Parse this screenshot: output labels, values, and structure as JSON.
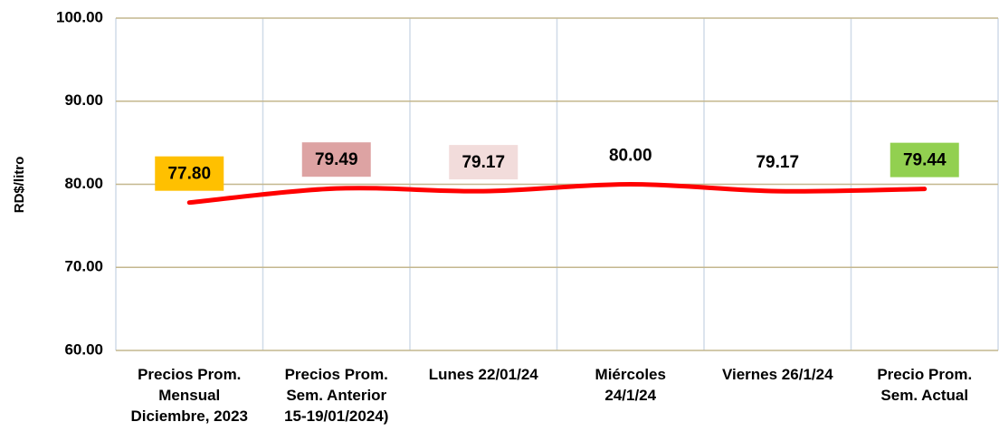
{
  "chart_data": {
    "type": "line",
    "y_label": "RD$/litro",
    "categories": [
      "Precios Prom.\nMensual\nDiciembre, 2023",
      "Precios Prom.\nSem. Anterior\n15-19/01/2024)",
      "Lunes  22/01/24",
      "Miércoles\n24/1/24",
      "Viernes 26/1/24",
      "Precio Prom.\nSem. Actual"
    ],
    "series": [
      {
        "name": null,
        "color": "#ff0000",
        "values": [
          77.8,
          79.49,
          79.17,
          80,
          79.17,
          79.44
        ],
        "value_labels": [
          "77.80",
          "79.49",
          "79.17",
          "80.00",
          "79.17",
          "79.44"
        ],
        "value_label_colors": [
          "#ffc000",
          "#dda3a3",
          "#f2dcdb",
          null,
          null,
          "#92d050"
        ]
      }
    ],
    "ylim": [
      60,
      100
    ],
    "yticks": [
      {
        "value": 60,
        "label": "60.00"
      },
      {
        "value": 70,
        "label": "70.00"
      },
      {
        "value": 80,
        "label": "80.00"
      },
      {
        "value": 90,
        "label": "90.00"
      },
      {
        "value": 100,
        "label": "100.00"
      }
    ],
    "grid": true,
    "smooth": true
  }
}
